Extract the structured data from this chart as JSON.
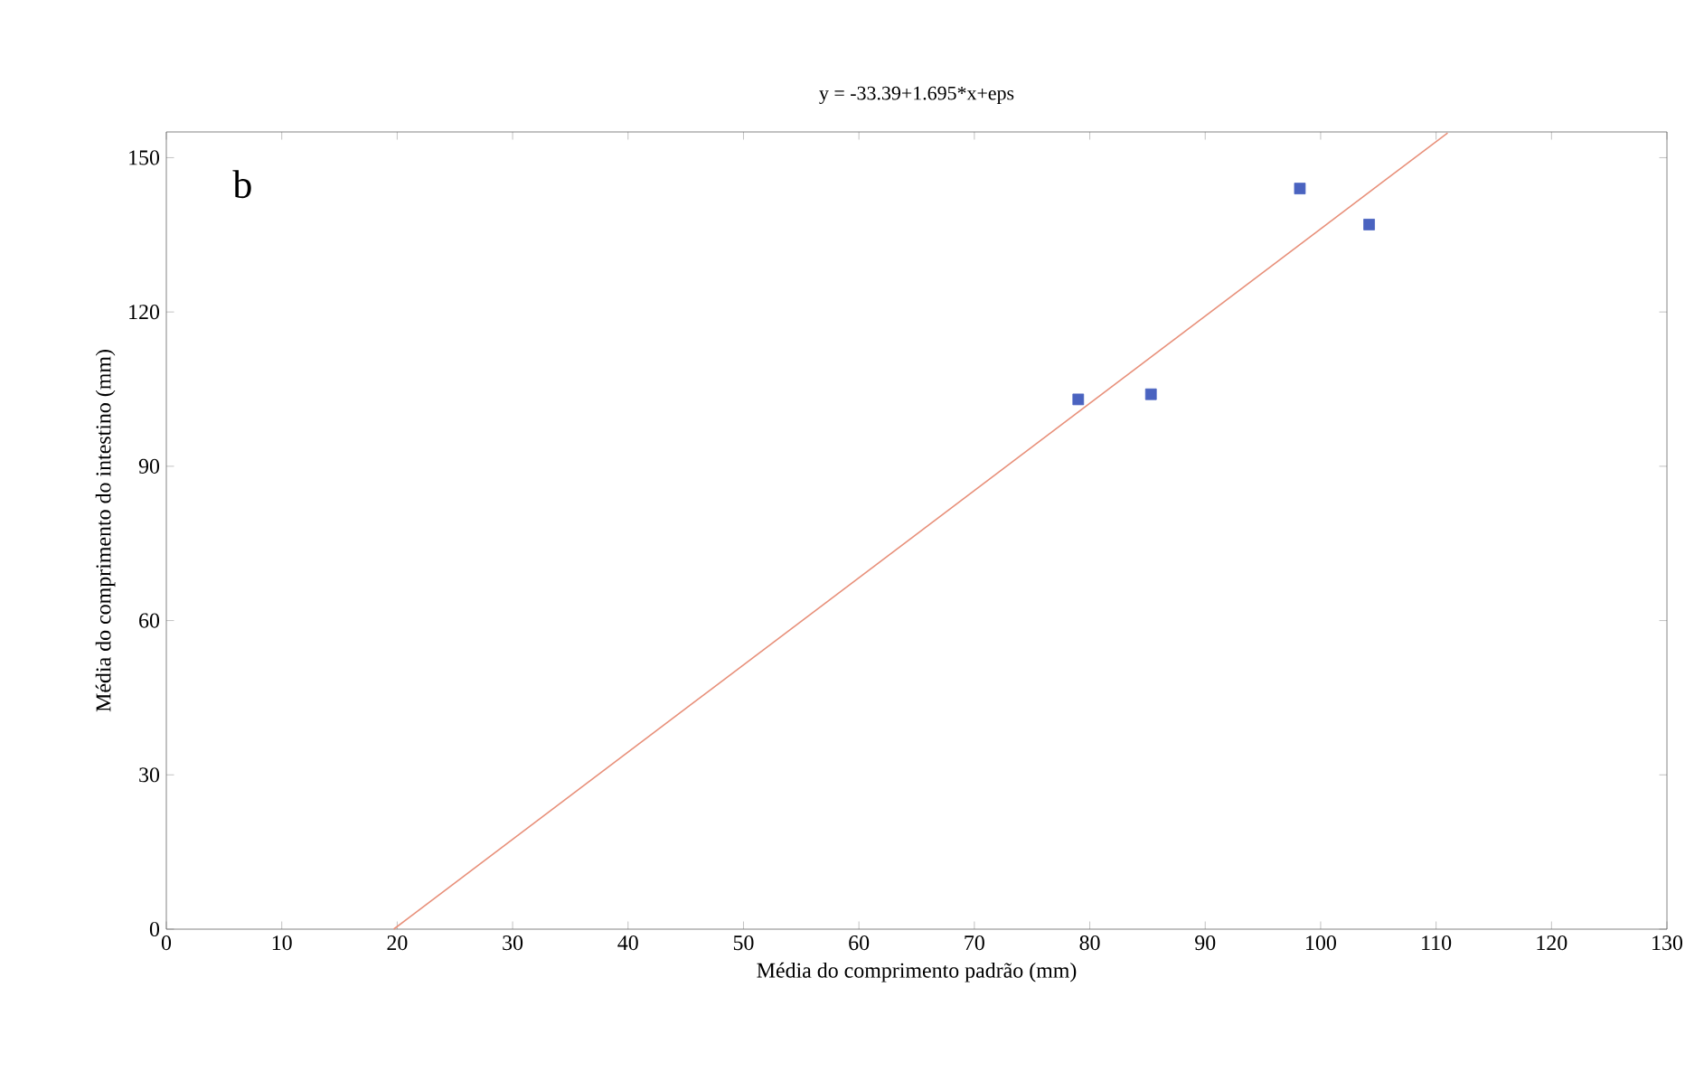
{
  "chart_data": {
    "type": "scatter",
    "title": "y = -33.39+1.695*x+eps",
    "xlabel": "Média do comprimento padrão (mm)",
    "ylabel": "Média do comprimento do intestino (mm)",
    "annotations": [
      "b"
    ],
    "series": [
      {
        "color": "#4a63c0",
        "marker": "square",
        "x": [
          79,
          85.3,
          98.2,
          104.2
        ],
        "values": [
          103,
          104,
          144,
          137
        ]
      },
      {
        "type": "line",
        "color": "#e8907a",
        "marker": "none",
        "line_style": "solid",
        "x": [
          19.7,
          111.0
        ],
        "values": [
          0,
          154.8
        ]
      }
    ],
    "xlim": [
      0,
      130
    ],
    "ylim": [
      0,
      155
    ],
    "xticks": [
      0,
      10,
      20,
      30,
      40,
      50,
      60,
      70,
      80,
      90,
      100,
      110,
      120,
      130
    ],
    "yticks": [
      0,
      30,
      60,
      90,
      120,
      150
    ],
    "grid": false
  }
}
